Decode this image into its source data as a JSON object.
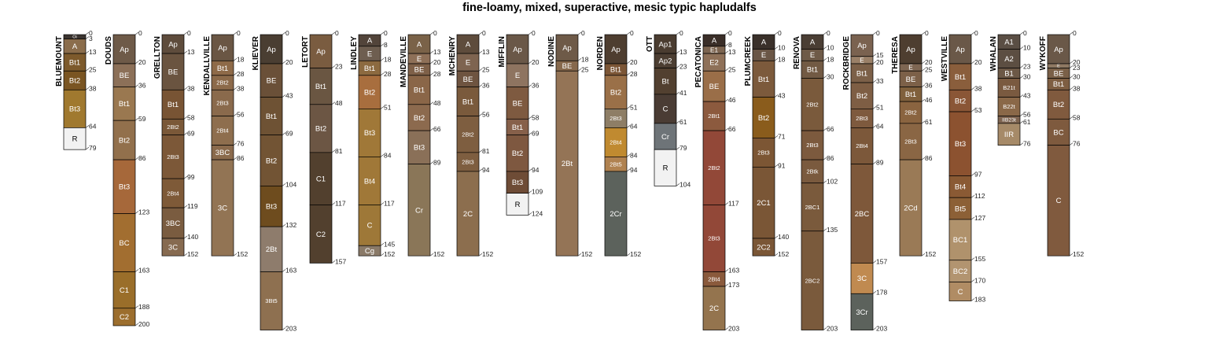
{
  "title": "fine-loamy, mixed, superactive, mesic typic hapludalfs",
  "depth_units": "cm",
  "profiles": [
    {
      "name": "BLUEMOUNT",
      "horizons": [
        {
          "name": "Oi",
          "top": 0,
          "bottom": 3,
          "color": "#3b3430"
        },
        {
          "name": "A",
          "top": 3,
          "bottom": 13,
          "color": "#8b6d4c"
        },
        {
          "name": "Bt1",
          "top": 13,
          "bottom": 25,
          "color": "#7d5a2c"
        },
        {
          "name": "Bt2",
          "top": 25,
          "bottom": 38,
          "color": "#7a5522"
        },
        {
          "name": "Bt3",
          "top": 38,
          "bottom": 64,
          "color": "#a0792f"
        },
        {
          "name": "R",
          "top": 64,
          "bottom": 79,
          "color": "#f2f2f2"
        }
      ]
    },
    {
      "name": "DOUDS",
      "horizons": [
        {
          "name": "Ap",
          "top": 0,
          "bottom": 20,
          "color": "#6e5a48"
        },
        {
          "name": "BE",
          "top": 20,
          "bottom": 36,
          "color": "#8c7058"
        },
        {
          "name": "Bt1",
          "top": 36,
          "bottom": 59,
          "color": "#9a7850"
        },
        {
          "name": "Bt2",
          "top": 59,
          "bottom": 86,
          "color": "#92704c"
        },
        {
          "name": "Bt3",
          "top": 86,
          "bottom": 123,
          "color": "#a6683a"
        },
        {
          "name": "BC",
          "top": 123,
          "bottom": 163,
          "color": "#a26e30"
        },
        {
          "name": "C1",
          "top": 163,
          "bottom": 188,
          "color": "#9a6e2a"
        },
        {
          "name": "C2",
          "top": 188,
          "bottom": 200,
          "color": "#9c6e2e"
        }
      ]
    },
    {
      "name": "GRELLTON",
      "horizons": [
        {
          "name": "Ap",
          "top": 0,
          "bottom": 13,
          "color": "#5e4c3c"
        },
        {
          "name": "BE",
          "top": 13,
          "bottom": 38,
          "color": "#6a5440"
        },
        {
          "name": "Bt1",
          "top": 38,
          "bottom": 58,
          "color": "#785434"
        },
        {
          "name": "2Bt2",
          "top": 58,
          "bottom": 69,
          "color": "#7a5838"
        },
        {
          "name": "2Bt3",
          "top": 69,
          "bottom": 99,
          "color": "#7c5838"
        },
        {
          "name": "2Bt4",
          "top": 99,
          "bottom": 119,
          "color": "#7e5a38"
        },
        {
          "name": "3BC",
          "top": 119,
          "bottom": 140,
          "color": "#7a5c40"
        },
        {
          "name": "3C",
          "top": 140,
          "bottom": 152,
          "color": "#866a50"
        }
      ]
    },
    {
      "name": "KENDALLVILLE",
      "horizons": [
        {
          "name": "Ap",
          "top": 0,
          "bottom": 18,
          "color": "#6a5644"
        },
        {
          "name": "Bt1",
          "top": 18,
          "bottom": 28,
          "color": "#8e6a48"
        },
        {
          "name": "2Bt2",
          "top": 28,
          "bottom": 38,
          "color": "#8c6a4a"
        },
        {
          "name": "2Bt3",
          "top": 38,
          "bottom": 56,
          "color": "#8a6a4c"
        },
        {
          "name": "2Bt4",
          "top": 56,
          "bottom": 76,
          "color": "#8e6e4e"
        },
        {
          "name": "3BC",
          "top": 76,
          "bottom": 86,
          "color": "#8a6a4c"
        },
        {
          "name": "3C",
          "top": 86,
          "bottom": 152,
          "color": "#927454"
        }
      ]
    },
    {
      "name": "KLIEVER",
      "horizons": [
        {
          "name": "Ap",
          "top": 0,
          "bottom": 20,
          "color": "#4a3e32"
        },
        {
          "name": "BE",
          "top": 20,
          "bottom": 43,
          "color": "#6a5038"
        },
        {
          "name": "Bt1",
          "top": 43,
          "bottom": 69,
          "color": "#6e5234"
        },
        {
          "name": "Bt2",
          "top": 69,
          "bottom": 104,
          "color": "#725434"
        },
        {
          "name": "Bt3",
          "top": 104,
          "bottom": 132,
          "color": "#6e4c1e"
        },
        {
          "name": "2Bt",
          "top": 132,
          "bottom": 163,
          "color": "#8e7c6c"
        },
        {
          "name": "3Bt5",
          "top": 163,
          "bottom": 203,
          "color": "#8e7050"
        }
      ]
    },
    {
      "name": "LETORT",
      "horizons": [
        {
          "name": "Ap",
          "top": 0,
          "bottom": 23,
          "color": "#7a5c40"
        },
        {
          "name": "Bt1",
          "top": 23,
          "bottom": 48,
          "color": "#6a5642"
        },
        {
          "name": "Bt2",
          "top": 48,
          "bottom": 81,
          "color": "#6c5644"
        },
        {
          "name": "C1",
          "top": 81,
          "bottom": 117,
          "color": "#52402e"
        },
        {
          "name": "C2",
          "top": 117,
          "bottom": 157,
          "color": "#52402e"
        }
      ]
    },
    {
      "name": "LINDLEY",
      "horizons": [
        {
          "name": "A",
          "top": 0,
          "bottom": 8,
          "color": "#52443a"
        },
        {
          "name": "E",
          "top": 8,
          "bottom": 18,
          "color": "#6e5e50"
        },
        {
          "name": "Bt1",
          "top": 18,
          "bottom": 28,
          "color": "#8c6a40"
        },
        {
          "name": "Bt2",
          "top": 28,
          "bottom": 51,
          "color": "#a86e3e"
        },
        {
          "name": "Bt3",
          "top": 51,
          "bottom": 84,
          "color": "#a07838"
        },
        {
          "name": "Bt4",
          "top": 84,
          "bottom": 117,
          "color": "#a07838"
        },
        {
          "name": "C",
          "top": 117,
          "bottom": 145,
          "color": "#9e7838"
        },
        {
          "name": "Cg",
          "top": 145,
          "bottom": 152,
          "color": "#8a7a68"
        }
      ]
    },
    {
      "name": "MANDEVILLE",
      "horizons": [
        {
          "name": "A",
          "top": 0,
          "bottom": 13,
          "color": "#7a6248"
        },
        {
          "name": "E",
          "top": 13,
          "bottom": 20,
          "color": "#8e7058"
        },
        {
          "name": "BE",
          "top": 20,
          "bottom": 28,
          "color": "#7e6048"
        },
        {
          "name": "Bt1",
          "top": 28,
          "bottom": 48,
          "color": "#8a6648"
        },
        {
          "name": "Bt2",
          "top": 48,
          "bottom": 66,
          "color": "#8c6a4e"
        },
        {
          "name": "Bt3",
          "top": 66,
          "bottom": 89,
          "color": "#8a7058"
        },
        {
          "name": "Cr",
          "top": 89,
          "bottom": 152,
          "color": "#8a7658"
        }
      ]
    },
    {
      "name": "MCHENRY",
      "horizons": [
        {
          "name": "A",
          "top": 0,
          "bottom": 13,
          "color": "#5e4c3c"
        },
        {
          "name": "E",
          "top": 13,
          "bottom": 25,
          "color": "#7e6450"
        },
        {
          "name": "BE",
          "top": 25,
          "bottom": 36,
          "color": "#6e5440"
        },
        {
          "name": "Bt1",
          "top": 36,
          "bottom": 56,
          "color": "#7a5a3c"
        },
        {
          "name": "2Bt2",
          "top": 56,
          "bottom": 81,
          "color": "#7e5e40"
        },
        {
          "name": "2Bt3",
          "top": 81,
          "bottom": 94,
          "color": "#7e5e40"
        },
        {
          "name": "2C",
          "top": 94,
          "bottom": 152,
          "color": "#8c6e4e"
        }
      ]
    },
    {
      "name": "MIFFLIN",
      "horizons": [
        {
          "name": "Ap",
          "top": 0,
          "bottom": 20,
          "color": "#6a5848"
        },
        {
          "name": "E",
          "top": 20,
          "bottom": 36,
          "color": "#8e7460"
        },
        {
          "name": "BE",
          "top": 36,
          "bottom": 58,
          "color": "#7e5a40"
        },
        {
          "name": "Bt1",
          "top": 58,
          "bottom": 69,
          "color": "#86604a"
        },
        {
          "name": "Bt2",
          "top": 69,
          "bottom": 94,
          "color": "#7e5840"
        },
        {
          "name": "Bt3",
          "top": 94,
          "bottom": 109,
          "color": "#6e4c36"
        },
        {
          "name": "R",
          "top": 109,
          "bottom": 124,
          "color": "#f2f2f2"
        }
      ]
    },
    {
      "name": "NODINE",
      "horizons": [
        {
          "name": "Ap",
          "top": 0,
          "bottom": 18,
          "color": "#6e5a48"
        },
        {
          "name": "BE",
          "top": 18,
          "bottom": 25,
          "color": "#86684c"
        },
        {
          "name": "2Bt",
          "top": 25,
          "bottom": 152,
          "color": "#947456"
        }
      ]
    },
    {
      "name": "NORDEN",
      "horizons": [
        {
          "name": "Ap",
          "top": 0,
          "bottom": 20,
          "color": "#4e3e30"
        },
        {
          "name": "Bt1",
          "top": 20,
          "bottom": 28,
          "color": "#7c5636"
        },
        {
          "name": "Bt2",
          "top": 28,
          "bottom": 51,
          "color": "#9a7048"
        },
        {
          "name": "2Bt3",
          "top": 51,
          "bottom": 64,
          "color": "#8e7e66"
        },
        {
          "name": "2Bt4",
          "top": 64,
          "bottom": 84,
          "color": "#c08a30"
        },
        {
          "name": "2Bt5",
          "top": 84,
          "bottom": 94,
          "color": "#b08250"
        },
        {
          "name": "2Cr",
          "top": 94,
          "bottom": 152,
          "color": "#5c625c"
        }
      ]
    },
    {
      "name": "OTT",
      "horizons": [
        {
          "name": "Ap1",
          "top": 0,
          "bottom": 13,
          "color": "#4a3c30"
        },
        {
          "name": "Ap2",
          "top": 13,
          "bottom": 23,
          "color": "#4c3e32"
        },
        {
          "name": "Bt",
          "top": 23,
          "bottom": 41,
          "color": "#524030"
        },
        {
          "name": "C",
          "top": 41,
          "bottom": 61,
          "color": "#4a3c34"
        },
        {
          "name": "Cr",
          "top": 61,
          "bottom": 79,
          "color": "#6e7478"
        },
        {
          "name": "R",
          "top": 79,
          "bottom": 104,
          "color": "#f2f2f2"
        }
      ]
    },
    {
      "name": "PECATONICA",
      "horizons": [
        {
          "name": "A",
          "top": 0,
          "bottom": 8,
          "color": "#3a2e28"
        },
        {
          "name": "E1",
          "top": 8,
          "bottom": 13,
          "color": "#7c6450"
        },
        {
          "name": "E2",
          "top": 13,
          "bottom": 25,
          "color": "#8e7058"
        },
        {
          "name": "BE",
          "top": 25,
          "bottom": 46,
          "color": "#9a6e48"
        },
        {
          "name": "2Bt1",
          "top": 46,
          "bottom": 66,
          "color": "#8c5a3e"
        },
        {
          "name": "2Bt2",
          "top": 66,
          "bottom": 117,
          "color": "#924838"
        },
        {
          "name": "2Bt3",
          "top": 117,
          "bottom": 163,
          "color": "#924838"
        },
        {
          "name": "2Bt4",
          "top": 163,
          "bottom": 173,
          "color": "#8a5a3c"
        },
        {
          "name": "2C",
          "top": 173,
          "bottom": 203,
          "color": "#94744e"
        }
      ]
    },
    {
      "name": "PLUMCREEK",
      "horizons": [
        {
          "name": "A",
          "top": 0,
          "bottom": 10,
          "color": "#3a302a"
        },
        {
          "name": "E",
          "top": 10,
          "bottom": 18,
          "color": "#6a5646"
        },
        {
          "name": "Bt1",
          "top": 18,
          "bottom": 43,
          "color": "#7c5a3c"
        },
        {
          "name": "Bt2",
          "top": 43,
          "bottom": 71,
          "color": "#8a5c1c"
        },
        {
          "name": "2Bt3",
          "top": 71,
          "bottom": 91,
          "color": "#7c5634"
        },
        {
          "name": "2C1",
          "top": 91,
          "bottom": 140,
          "color": "#7a5636"
        },
        {
          "name": "2C2",
          "top": 140,
          "bottom": 152,
          "color": "#7a5636"
        }
      ]
    },
    {
      "name": "RENOVA",
      "horizons": [
        {
          "name": "A",
          "top": 0,
          "bottom": 10,
          "color": "#4a3e34"
        },
        {
          "name": "E",
          "top": 10,
          "bottom": 18,
          "color": "#6e5a48"
        },
        {
          "name": "Bt1",
          "top": 18,
          "bottom": 30,
          "color": "#725a44"
        },
        {
          "name": "2Bt2",
          "top": 30,
          "bottom": 66,
          "color": "#7a5a3c"
        },
        {
          "name": "2Bt3",
          "top": 66,
          "bottom": 86,
          "color": "#7c5a3e"
        },
        {
          "name": "2Btk",
          "top": 86,
          "bottom": 102,
          "color": "#7a5a3e"
        },
        {
          "name": "2BC1",
          "top": 102,
          "bottom": 135,
          "color": "#7a5a3c"
        },
        {
          "name": "2BC2",
          "top": 135,
          "bottom": 203,
          "color": "#7a5a3c"
        }
      ]
    },
    {
      "name": "ROCKBRIDGE",
      "horizons": [
        {
          "name": "Ap",
          "top": 0,
          "bottom": 15,
          "color": "#7a6250"
        },
        {
          "name": "E",
          "top": 15,
          "bottom": 20,
          "color": "#9a8068"
        },
        {
          "name": "Bt1",
          "top": 20,
          "bottom": 33,
          "color": "#7c6048"
        },
        {
          "name": "Bt2",
          "top": 33,
          "bottom": 51,
          "color": "#7e5e44"
        },
        {
          "name": "2Bt3",
          "top": 51,
          "bottom": 64,
          "color": "#7e5a3e"
        },
        {
          "name": "2Bt4",
          "top": 64,
          "bottom": 89,
          "color": "#7c583a"
        },
        {
          "name": "2BC",
          "top": 89,
          "bottom": 157,
          "color": "#7e583a"
        },
        {
          "name": "3C",
          "top": 157,
          "bottom": 178,
          "color": "#c08a50"
        },
        {
          "name": "3Cr",
          "top": 178,
          "bottom": 203,
          "color": "#5c625c"
        }
      ]
    },
    {
      "name": "THERESA",
      "horizons": [
        {
          "name": "Ap",
          "top": 0,
          "bottom": 20,
          "color": "#4e3e30"
        },
        {
          "name": "E",
          "top": 20,
          "bottom": 25,
          "color": "#7e6652"
        },
        {
          "name": "BE",
          "top": 25,
          "bottom": 36,
          "color": "#7c6048"
        },
        {
          "name": "Bt1",
          "top": 36,
          "bottom": 46,
          "color": "#80603c"
        },
        {
          "name": "2Bt2",
          "top": 46,
          "bottom": 61,
          "color": "#8a6440"
        },
        {
          "name": "2Bt3",
          "top": 61,
          "bottom": 86,
          "color": "#8a6644"
        },
        {
          "name": "2Cd",
          "top": 86,
          "bottom": 152,
          "color": "#9a7a56"
        }
      ]
    },
    {
      "name": "WESTVILLE",
      "horizons": [
        {
          "name": "Ap",
          "top": 0,
          "bottom": 20,
          "color": "#6a5848"
        },
        {
          "name": "Bt1",
          "top": 20,
          "bottom": 38,
          "color": "#8a5e3c"
        },
        {
          "name": "Bt2",
          "top": 38,
          "bottom": 53,
          "color": "#8a5636"
        },
        {
          "name": "Bt3",
          "top": 53,
          "bottom": 97,
          "color": "#8c5230"
        },
        {
          "name": "Bt4",
          "top": 97,
          "bottom": 112,
          "color": "#8a5a34"
        },
        {
          "name": "Bt5",
          "top": 112,
          "bottom": 127,
          "color": "#8c6036"
        },
        {
          "name": "BC1",
          "top": 127,
          "bottom": 155,
          "color": "#b0926c"
        },
        {
          "name": "BC2",
          "top": 155,
          "bottom": 170,
          "color": "#b29470"
        },
        {
          "name": "C",
          "top": 170,
          "bottom": 183,
          "color": "#b08c64"
        }
      ]
    },
    {
      "name": "WHALAN",
      "horizons": [
        {
          "name": "A1",
          "top": 0,
          "bottom": 10,
          "color": "#5a4e44"
        },
        {
          "name": "A2",
          "top": 10,
          "bottom": 23,
          "color": "#5c4e42"
        },
        {
          "name": "B1",
          "top": 23,
          "bottom": 30,
          "color": "#6c5846"
        },
        {
          "name": "B21t",
          "top": 30,
          "bottom": 43,
          "color": "#7a5a40"
        },
        {
          "name": "B22t",
          "top": 43,
          "bottom": 56,
          "color": "#8a6848"
        },
        {
          "name": "IIB23t",
          "top": 56,
          "bottom": 61,
          "color": "#7e6450"
        },
        {
          "name": "IIR",
          "top": 61,
          "bottom": 76,
          "color": "#a68a68"
        }
      ]
    },
    {
      "name": "WYKOFF",
      "horizons": [
        {
          "name": "Ap",
          "top": 0,
          "bottom": 20,
          "color": "#6a5848"
        },
        {
          "name": "E",
          "top": 20,
          "bottom": 23,
          "color": "#8e7862"
        },
        {
          "name": "BE",
          "top": 23,
          "bottom": 30,
          "color": "#7a6048"
        },
        {
          "name": "Bt1",
          "top": 30,
          "bottom": 38,
          "color": "#7e5e42"
        },
        {
          "name": "Bt2",
          "top": 38,
          "bottom": 58,
          "color": "#805a3e"
        },
        {
          "name": "BC",
          "top": 58,
          "bottom": 76,
          "color": "#7e5a3e"
        },
        {
          "name": "C",
          "top": 76,
          "bottom": 152,
          "color": "#805a3e"
        }
      ]
    }
  ]
}
